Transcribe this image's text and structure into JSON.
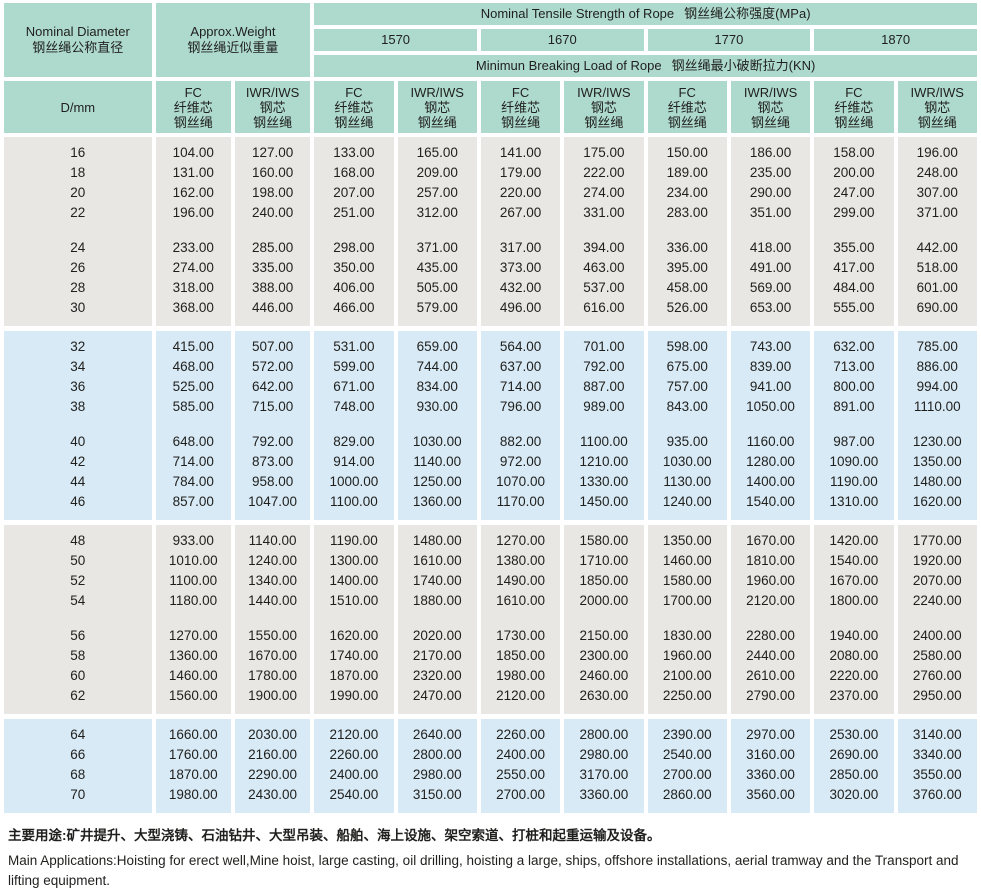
{
  "colors": {
    "header_bg": "#aedacd",
    "band_gray": "#e8e7e4",
    "band_blue": "#d8eaf5",
    "separator": "#ffffff",
    "text": "#1f1f1d"
  },
  "table": {
    "diameter": {
      "en": "Nominal Diameter",
      "zh": "钢丝绳公称直径"
    },
    "weight": {
      "en": "Approx.Weight",
      "zh": "钢丝绳近似重量"
    },
    "tensile": {
      "en": "Nominal Tensile Strength of Rope",
      "zh": "钢丝绳公称强度(MPa)"
    },
    "grades": [
      "1570",
      "1670",
      "1770",
      "1870"
    ],
    "mbl": {
      "en": "Minimun Breaking Load of Rope",
      "zh": "钢丝绳最小破断拉力(KN)"
    },
    "d_label": "D/mm",
    "core_fc": [
      "FC",
      "纤维芯",
      "钢丝绳"
    ],
    "core_iwr": [
      "IWR/IWS",
      "钢芯",
      "钢丝绳"
    ],
    "bands": [
      {
        "bg": "gray",
        "groups": [
          [
            [
              "16",
              "104.00",
              "127.00",
              "133.00",
              "165.00",
              "141.00",
              "175.00",
              "150.00",
              "186.00",
              "158.00",
              "196.00"
            ],
            [
              "18",
              "131.00",
              "160.00",
              "168.00",
              "209.00",
              "179.00",
              "222.00",
              "189.00",
              "235.00",
              "200.00",
              "248.00"
            ],
            [
              "20",
              "162.00",
              "198.00",
              "207.00",
              "257.00",
              "220.00",
              "274.00",
              "234.00",
              "290.00",
              "247.00",
              "307.00"
            ],
            [
              "22",
              "196.00",
              "240.00",
              "251.00",
              "312.00",
              "267.00",
              "331.00",
              "283.00",
              "351.00",
              "299.00",
              "371.00"
            ]
          ],
          [
            [
              "24",
              "233.00",
              "285.00",
              "298.00",
              "371.00",
              "317.00",
              "394.00",
              "336.00",
              "418.00",
              "355.00",
              "442.00"
            ],
            [
              "26",
              "274.00",
              "335.00",
              "350.00",
              "435.00",
              "373.00",
              "463.00",
              "395.00",
              "491.00",
              "417.00",
              "518.00"
            ],
            [
              "28",
              "318.00",
              "388.00",
              "406.00",
              "505.00",
              "432.00",
              "537.00",
              "458.00",
              "569.00",
              "484.00",
              "601.00"
            ],
            [
              "30",
              "368.00",
              "446.00",
              "466.00",
              "579.00",
              "496.00",
              "616.00",
              "526.00",
              "653.00",
              "555.00",
              "690.00"
            ]
          ]
        ]
      },
      {
        "bg": "blue",
        "groups": [
          [
            [
              "32",
              "415.00",
              "507.00",
              "531.00",
              "659.00",
              "564.00",
              "701.00",
              "598.00",
              "743.00",
              "632.00",
              "785.00"
            ],
            [
              "34",
              "468.00",
              "572.00",
              "599.00",
              "744.00",
              "637.00",
              "792.00",
              "675.00",
              "839.00",
              "713.00",
              "886.00"
            ],
            [
              "36",
              "525.00",
              "642.00",
              "671.00",
              "834.00",
              "714.00",
              "887.00",
              "757.00",
              "941.00",
              "800.00",
              "994.00"
            ],
            [
              "38",
              "585.00",
              "715.00",
              "748.00",
              "930.00",
              "796.00",
              "989.00",
              "843.00",
              "1050.00",
              "891.00",
              "1110.00"
            ]
          ],
          [
            [
              "40",
              "648.00",
              "792.00",
              "829.00",
              "1030.00",
              "882.00",
              "1100.00",
              "935.00",
              "1160.00",
              "987.00",
              "1230.00"
            ],
            [
              "42",
              "714.00",
              "873.00",
              "914.00",
              "1140.00",
              "972.00",
              "1210.00",
              "1030.00",
              "1280.00",
              "1090.00",
              "1350.00"
            ],
            [
              "44",
              "784.00",
              "958.00",
              "1000.00",
              "1250.00",
              "1070.00",
              "1330.00",
              "1130.00",
              "1400.00",
              "1190.00",
              "1480.00"
            ],
            [
              "46",
              "857.00",
              "1047.00",
              "1100.00",
              "1360.00",
              "1170.00",
              "1450.00",
              "1240.00",
              "1540.00",
              "1310.00",
              "1620.00"
            ]
          ]
        ]
      },
      {
        "bg": "gray",
        "groups": [
          [
            [
              "48",
              "933.00",
              "1140.00",
              "1190.00",
              "1480.00",
              "1270.00",
              "1580.00",
              "1350.00",
              "1670.00",
              "1420.00",
              "1770.00"
            ],
            [
              "50",
              "1010.00",
              "1240.00",
              "1300.00",
              "1610.00",
              "1380.00",
              "1710.00",
              "1460.00",
              "1810.00",
              "1540.00",
              "1920.00"
            ],
            [
              "52",
              "1100.00",
              "1340.00",
              "1400.00",
              "1740.00",
              "1490.00",
              "1850.00",
              "1580.00",
              "1960.00",
              "1670.00",
              "2070.00"
            ],
            [
              "54",
              "1180.00",
              "1440.00",
              "1510.00",
              "1880.00",
              "1610.00",
              "2000.00",
              "1700.00",
              "2120.00",
              "1800.00",
              "2240.00"
            ]
          ],
          [
            [
              "56",
              "1270.00",
              "1550.00",
              "1620.00",
              "2020.00",
              "1730.00",
              "2150.00",
              "1830.00",
              "2280.00",
              "1940.00",
              "2400.00"
            ],
            [
              "58",
              "1360.00",
              "1670.00",
              "1740.00",
              "2170.00",
              "1850.00",
              "2300.00",
              "1960.00",
              "2440.00",
              "2080.00",
              "2580.00"
            ],
            [
              "60",
              "1460.00",
              "1780.00",
              "1870.00",
              "2320.00",
              "1980.00",
              "2460.00",
              "2100.00",
              "2610.00",
              "2220.00",
              "2760.00"
            ],
            [
              "62",
              "1560.00",
              "1900.00",
              "1990.00",
              "2470.00",
              "2120.00",
              "2630.00",
              "2250.00",
              "2790.00",
              "2370.00",
              "2950.00"
            ]
          ]
        ]
      },
      {
        "bg": "blue",
        "groups": [
          [
            [
              "64",
              "1660.00",
              "2030.00",
              "2120.00",
              "2640.00",
              "2260.00",
              "2800.00",
              "2390.00",
              "2970.00",
              "2530.00",
              "3140.00"
            ],
            [
              "66",
              "1760.00",
              "2160.00",
              "2260.00",
              "2800.00",
              "2400.00",
              "2980.00",
              "2540.00",
              "3160.00",
              "2690.00",
              "3340.00"
            ],
            [
              "68",
              "1870.00",
              "2290.00",
              "2400.00",
              "2980.00",
              "2550.00",
              "3170.00",
              "2700.00",
              "3360.00",
              "2850.00",
              "3550.00"
            ],
            [
              "70",
              "1980.00",
              "2430.00",
              "2540.00",
              "3150.00",
              "2700.00",
              "3360.00",
              "2860.00",
              "3560.00",
              "3020.00",
              "3760.00"
            ]
          ]
        ]
      }
    ]
  },
  "footer": {
    "zh": "主要用途:矿井提升、大型浇铸、石油钻井、大型吊装、船舶、海上设施、架空索道、打桩和起重运输及设备。",
    "en": "Main Applications:Hoisting for erect well,Mine hoist, large casting, oil drilling, hoisting a large, ships, offshore installations, aerial tramway and the Transport and lifting equipment."
  }
}
